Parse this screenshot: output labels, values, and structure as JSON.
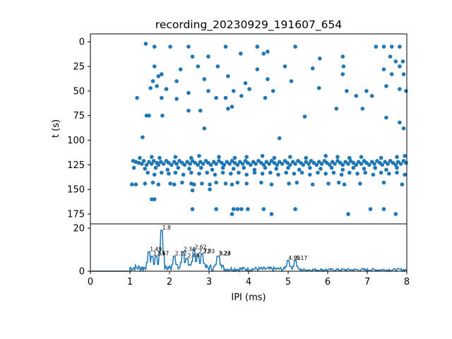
{
  "chart_data": [
    {
      "type": "scatter",
      "title": "recording_20230929_191607_654",
      "xlabel": "",
      "ylabel": "t (s)",
      "xlim": [
        0,
        8
      ],
      "ylim": [
        185,
        -8
      ],
      "y_inverted": true,
      "xticks": [],
      "yticks": [
        0,
        25,
        50,
        75,
        100,
        125,
        150,
        175
      ],
      "color": "#1f77b4",
      "points": [
        [
          1.4,
          2
        ],
        [
          1.62,
          5
        ],
        [
          2.02,
          5
        ],
        [
          2.48,
          5
        ],
        [
          3.42,
          5
        ],
        [
          4.22,
          5
        ],
        [
          5.18,
          5
        ],
        [
          7.22,
          5
        ],
        [
          7.42,
          5
        ],
        [
          7.62,
          5
        ],
        [
          7.82,
          5
        ],
        [
          2.58,
          15
        ],
        [
          2.98,
          15
        ],
        [
          3.8,
          12
        ],
        [
          4.38,
          12
        ],
        [
          4.48,
          10
        ],
        [
          5.8,
          17
        ],
        [
          6.38,
          15
        ],
        [
          7.58,
          15
        ],
        [
          7.72,
          20
        ],
        [
          7.9,
          20
        ],
        [
          1.62,
          25
        ],
        [
          2.28,
          28
        ],
        [
          2.72,
          25
        ],
        [
          3.22,
          25
        ],
        [
          4.22,
          28
        ],
        [
          4.92,
          25
        ],
        [
          5.62,
          27
        ],
        [
          6.4,
          25
        ],
        [
          7.42,
          28
        ],
        [
          7.82,
          25
        ],
        [
          1.58,
          40
        ],
        [
          1.72,
          35
        ],
        [
          1.8,
          33
        ],
        [
          2.18,
          40
        ],
        [
          2.88,
          38
        ],
        [
          3.48,
          35
        ],
        [
          3.92,
          42
        ],
        [
          4.48,
          38
        ],
        [
          5.08,
          40
        ],
        [
          6.38,
          33
        ],
        [
          7.62,
          33
        ],
        [
          7.92,
          33
        ],
        [
          1.52,
          47
        ],
        [
          1.68,
          45
        ],
        [
          1.92,
          48
        ],
        [
          2.48,
          52
        ],
        [
          2.98,
          50
        ],
        [
          3.62,
          50
        ],
        [
          4.02,
          48
        ],
        [
          4.62,
          50
        ],
        [
          5.78,
          47
        ],
        [
          6.48,
          50
        ],
        [
          6.98,
          50
        ],
        [
          7.48,
          45
        ],
        [
          7.82,
          48
        ],
        [
          7.98,
          50
        ],
        [
          1.18,
          57
        ],
        [
          1.8,
          57
        ],
        [
          2.18,
          58
        ],
        [
          3.18,
          57
        ],
        [
          3.42,
          57
        ],
        [
          3.82,
          55
        ],
        [
          4.42,
          57
        ],
        [
          6.72,
          55
        ],
        [
          7.12,
          55
        ],
        [
          1.42,
          75
        ],
        [
          1.48,
          75
        ],
        [
          1.82,
          75
        ],
        [
          2.48,
          70
        ],
        [
          2.78,
          70
        ],
        [
          3.48,
          68
        ],
        [
          3.58,
          66
        ],
        [
          5.42,
          76
        ],
        [
          6.22,
          68
        ],
        [
          6.88,
          68
        ],
        [
          7.48,
          77
        ],
        [
          7.82,
          82
        ],
        [
          1.32,
          97
        ],
        [
          2.88,
          88
        ],
        [
          4.78,
          98
        ],
        [
          7.92,
          88
        ],
        [
          1.08,
          121
        ],
        [
          1.15,
          122
        ],
        [
          1.22,
          123
        ],
        [
          1.3,
          124
        ],
        [
          1.35,
          121
        ],
        [
          1.42,
          125
        ],
        [
          1.48,
          122
        ],
        [
          1.55,
          124
        ],
        [
          1.6,
          121
        ],
        [
          1.68,
          123
        ],
        [
          1.72,
          125
        ],
        [
          1.78,
          122
        ],
        [
          1.85,
          124
        ],
        [
          1.92,
          121
        ],
        [
          1.98,
          123
        ],
        [
          2.05,
          125
        ],
        [
          2.12,
          122
        ],
        [
          2.18,
          124
        ],
        [
          2.25,
          121
        ],
        [
          2.32,
          123
        ],
        [
          2.38,
          125
        ],
        [
          2.45,
          122
        ],
        [
          2.52,
          124
        ],
        [
          2.58,
          121
        ],
        [
          2.65,
          123
        ],
        [
          2.72,
          125
        ],
        [
          2.78,
          122
        ],
        [
          2.85,
          124
        ],
        [
          2.92,
          121
        ],
        [
          2.98,
          123
        ],
        [
          3.05,
          125
        ],
        [
          3.12,
          122
        ],
        [
          3.18,
          124
        ],
        [
          3.25,
          121
        ],
        [
          3.32,
          123
        ],
        [
          3.38,
          125
        ],
        [
          3.45,
          122
        ],
        [
          3.52,
          124
        ],
        [
          3.58,
          121
        ],
        [
          3.65,
          123
        ],
        [
          3.72,
          125
        ],
        [
          3.78,
          122
        ],
        [
          3.85,
          124
        ],
        [
          3.92,
          121
        ],
        [
          3.98,
          123
        ],
        [
          4.05,
          125
        ],
        [
          4.12,
          122
        ],
        [
          4.18,
          124
        ],
        [
          4.25,
          121
        ],
        [
          4.32,
          123
        ],
        [
          4.38,
          125
        ],
        [
          4.45,
          122
        ],
        [
          4.52,
          124
        ],
        [
          4.58,
          121
        ],
        [
          4.65,
          123
        ],
        [
          4.72,
          125
        ],
        [
          4.78,
          122
        ],
        [
          4.85,
          124
        ],
        [
          4.92,
          121
        ],
        [
          4.98,
          123
        ],
        [
          5.05,
          125
        ],
        [
          5.12,
          122
        ],
        [
          5.18,
          124
        ],
        [
          5.25,
          121
        ],
        [
          5.32,
          123
        ],
        [
          5.38,
          125
        ],
        [
          5.45,
          122
        ],
        [
          5.52,
          124
        ],
        [
          5.58,
          121
        ],
        [
          5.65,
          123
        ],
        [
          5.72,
          125
        ],
        [
          5.78,
          122
        ],
        [
          5.85,
          124
        ],
        [
          5.92,
          121
        ],
        [
          5.98,
          123
        ],
        [
          6.05,
          125
        ],
        [
          6.12,
          122
        ],
        [
          6.18,
          124
        ],
        [
          6.25,
          121
        ],
        [
          6.32,
          123
        ],
        [
          6.38,
          125
        ],
        [
          6.45,
          122
        ],
        [
          6.52,
          124
        ],
        [
          6.58,
          121
        ],
        [
          6.65,
          123
        ],
        [
          6.72,
          125
        ],
        [
          6.78,
          122
        ],
        [
          6.85,
          124
        ],
        [
          6.92,
          121
        ],
        [
          6.98,
          123
        ],
        [
          7.05,
          125
        ],
        [
          7.12,
          122
        ],
        [
          7.18,
          124
        ],
        [
          7.25,
          121
        ],
        [
          7.32,
          123
        ],
        [
          7.38,
          125
        ],
        [
          7.45,
          122
        ],
        [
          7.52,
          124
        ],
        [
          7.58,
          121
        ],
        [
          7.65,
          123
        ],
        [
          7.72,
          125
        ],
        [
          7.78,
          122
        ],
        [
          7.85,
          124
        ],
        [
          7.92,
          121
        ],
        [
          7.98,
          123
        ],
        [
          1.25,
          118
        ],
        [
          1.55,
          117
        ],
        [
          1.75,
          118
        ],
        [
          2.15,
          117
        ],
        [
          2.55,
          118
        ],
        [
          2.75,
          116
        ],
        [
          3.25,
          117
        ],
        [
          3.65,
          118
        ],
        [
          3.95,
          117
        ],
        [
          4.35,
          116
        ],
        [
          4.65,
          118
        ],
        [
          5.05,
          117
        ],
        [
          5.45,
          118
        ],
        [
          5.95,
          116
        ],
        [
          6.25,
          117
        ],
        [
          6.55,
          118
        ],
        [
          6.85,
          117
        ],
        [
          7.35,
          118
        ],
        [
          7.75,
          117
        ],
        [
          7.95,
          116
        ],
        [
          1.1,
          128
        ],
        [
          1.38,
          129
        ],
        [
          1.65,
          128
        ],
        [
          1.95,
          130
        ],
        [
          2.22,
          128
        ],
        [
          2.5,
          129
        ],
        [
          2.8,
          128
        ],
        [
          3.08,
          130
        ],
        [
          3.35,
          128
        ],
        [
          3.62,
          129
        ],
        [
          3.88,
          128
        ],
        [
          4.15,
          130
        ],
        [
          4.42,
          128
        ],
        [
          4.7,
          129
        ],
        [
          5.0,
          128
        ],
        [
          5.28,
          130
        ],
        [
          5.55,
          128
        ],
        [
          5.82,
          129
        ],
        [
          6.1,
          128
        ],
        [
          6.38,
          130
        ],
        [
          6.65,
          128
        ],
        [
          6.92,
          129
        ],
        [
          7.2,
          128
        ],
        [
          7.48,
          130
        ],
        [
          7.75,
          128
        ],
        [
          1.45,
          133
        ],
        [
          1.62,
          135
        ],
        [
          1.8,
          133
        ],
        [
          1.98,
          134
        ],
        [
          2.15,
          133
        ],
        [
          2.35,
          135
        ],
        [
          2.55,
          133
        ],
        [
          2.75,
          134
        ],
        [
          2.95,
          133
        ],
        [
          3.15,
          135
        ],
        [
          3.35,
          133
        ],
        [
          3.55,
          134
        ],
        [
          3.75,
          133
        ],
        [
          3.95,
          135
        ],
        [
          4.15,
          133
        ],
        [
          4.35,
          134
        ],
        [
          4.55,
          133
        ],
        [
          4.75,
          135
        ],
        [
          4.95,
          133
        ],
        [
          5.15,
          134
        ],
        [
          5.35,
          133
        ],
        [
          5.55,
          135
        ],
        [
          5.75,
          133
        ],
        [
          5.95,
          134
        ],
        [
          6.15,
          133
        ],
        [
          6.35,
          135
        ],
        [
          6.55,
          133
        ],
        [
          6.75,
          134
        ],
        [
          6.95,
          133
        ],
        [
          7.15,
          135
        ],
        [
          7.35,
          133
        ],
        [
          7.55,
          134
        ],
        [
          7.75,
          133
        ],
        [
          7.95,
          135
        ],
        [
          1.05,
          145
        ],
        [
          1.15,
          145
        ],
        [
          1.38,
          144
        ],
        [
          1.58,
          143
        ],
        [
          1.72,
          145
        ],
        [
          2.02,
          144
        ],
        [
          2.12,
          145
        ],
        [
          2.32,
          143
        ],
        [
          2.55,
          144
        ],
        [
          2.62,
          145
        ],
        [
          2.82,
          144
        ],
        [
          3.02,
          145
        ],
        [
          3.18,
          143
        ],
        [
          3.42,
          144
        ],
        [
          3.58,
          145
        ],
        [
          3.72,
          143
        ],
        [
          3.95,
          144
        ],
        [
          4.32,
          143
        ],
        [
          4.58,
          145
        ],
        [
          5.02,
          144
        ],
        [
          5.22,
          143
        ],
        [
          5.62,
          145
        ],
        [
          6.02,
          144
        ],
        [
          6.28,
          143
        ],
        [
          6.42,
          145
        ],
        [
          6.82,
          144
        ],
        [
          7.42,
          143
        ],
        [
          7.88,
          145
        ],
        [
          1.55,
          160
        ],
        [
          1.62,
          160
        ],
        [
          2.58,
          151
        ],
        [
          3.02,
          150
        ],
        [
          2.58,
          170
        ],
        [
          3.18,
          170
        ],
        [
          3.58,
          175
        ],
        [
          3.62,
          170
        ],
        [
          3.72,
          170
        ],
        [
          3.82,
          170
        ],
        [
          3.98,
          170
        ],
        [
          4.38,
          170
        ],
        [
          4.58,
          175
        ],
        [
          5.18,
          170
        ],
        [
          6.52,
          175
        ],
        [
          7.08,
          170
        ],
        [
          7.42,
          170
        ],
        [
          7.72,
          175
        ]
      ]
    },
    {
      "type": "line",
      "xlabel": "IPI (ms)",
      "ylabel": "",
      "xlim": [
        0,
        8
      ],
      "ylim": [
        0,
        22
      ],
      "xticks": [
        0,
        1,
        2,
        3,
        4,
        5,
        6,
        7,
        8
      ],
      "yticks": [
        0,
        20
      ],
      "color": "#1f77b4",
      "peaks": [
        {
          "x": 1.8,
          "y": 19,
          "label": "1.8"
        },
        {
          "x": 1.49,
          "y": 9,
          "label": "1.49"
        },
        {
          "x": 1.57,
          "y": 7,
          "label": "1.57"
        },
        {
          "x": 1.67,
          "y": 7,
          "label": "1.67"
        },
        {
          "x": 2.12,
          "y": 7,
          "label": "2.12"
        },
        {
          "x": 2.34,
          "y": 9,
          "label": "2.34"
        },
        {
          "x": 2.44,
          "y": 6,
          "label": "2.44"
        },
        {
          "x": 2.62,
          "y": 10,
          "label": "2.62"
        },
        {
          "x": 2.72,
          "y": 8,
          "label": "2.72"
        },
        {
          "x": 2.83,
          "y": 8,
          "label": "2.83"
        },
        {
          "x": 3.22,
          "y": 7,
          "label": "3.22"
        },
        {
          "x": 3.24,
          "y": 7,
          "label": "3.24"
        },
        {
          "x": 4.99,
          "y": 5,
          "label": "4.99"
        },
        {
          "x": 5.17,
          "y": 5,
          "label": "5.17"
        }
      ]
    }
  ]
}
